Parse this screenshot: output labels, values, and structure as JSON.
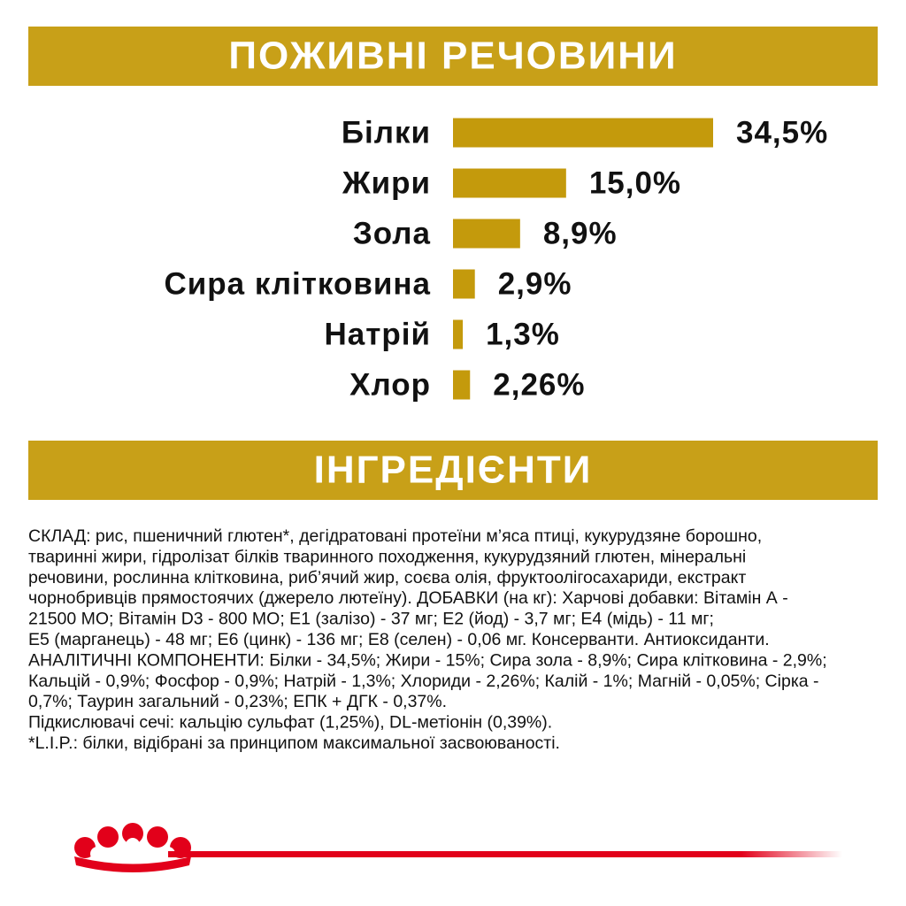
{
  "chart_data": {
    "type": "bar",
    "title": "ПОЖИВНІ РЕЧОВИНИ",
    "categories": [
      "Білки",
      "Жири",
      "Зола",
      "Сира клітковина",
      "Натрій",
      "Хлор"
    ],
    "values": [
      34.5,
      15.0,
      8.9,
      2.9,
      1.3,
      2.26
    ],
    "value_labels": [
      "34,5%",
      "15,0%",
      "8,9%",
      "2,9%",
      "1,3%",
      "2,26%"
    ],
    "color": "#c49a0c"
  },
  "ingredients": {
    "title": "ІНГРЕДІЄНТИ",
    "lines": [
      "СКЛАД: рис, пшеничний глютен*, дегідратовані протеїни м’яса птиці, кукурудзяне борошно,",
      "тваринні жири, гідролізат білків тваринного походження, кукурудзяний глютен, мінеральні",
      "речовини, рослинна клітковина, риб’ячий жир, соєва олія, фруктоолігосахариди, екстракт",
      "чорнобривців прямостоячих (джерело лютеїну). ДОБАВКИ (на кг): Харчові добавки: Вітамін А -",
      "21500 МО; Вітамін D3 - 800 МО; E1 (залізо) - 37 мг; E2 (йод) - 3,7 мг; E4 (мідь) - 11 мг;",
      "E5 (марганець) - 48 мг; E6 (цинк) - 136 мг; E8 (селен) - 0,06 мг. Консерванти. Антиоксиданти.",
      "АНАЛІТИЧНІ КОМПОНЕНТИ: Білки - 34,5%; Жири - 15%; Сира зола - 8,9%; Сира клітковина - 2,9%;",
      "Кальцій - 0,9%; Фосфор - 0,9%; Натрій - 1,3%; Хлориди - 2,26%; Калій - 1%; Магній - 0,05%; Сірка -",
      "0,7%; Таурин загальний - 0,23%; ЕПК + ДГК - 0,37%.",
      "Підкислювачі сечі: кальцію сульфат (1,25%), DL-метіонін (0,39%).",
      "*L.I.P.: білки, відібрані за принципом максимальної засвоюваності."
    ]
  }
}
